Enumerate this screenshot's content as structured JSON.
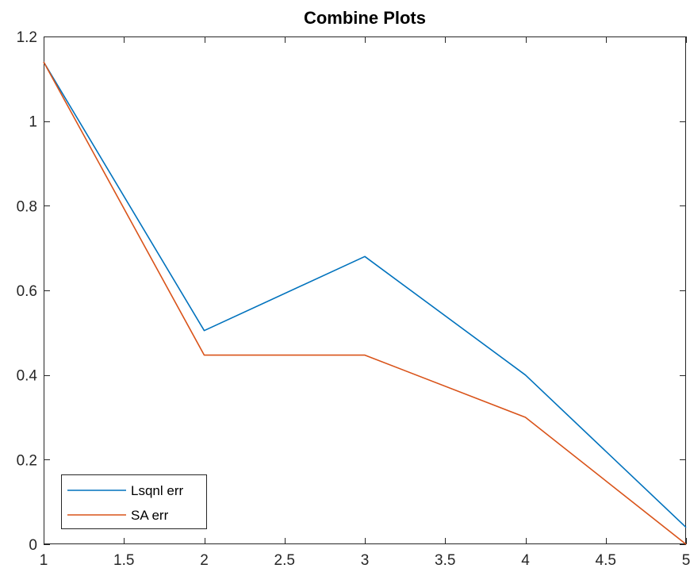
{
  "chart_data": {
    "type": "line",
    "title": "Combine Plots",
    "xlabel": "",
    "ylabel": "",
    "xlim": [
      1,
      5
    ],
    "ylim": [
      0,
      1.2
    ],
    "xticks": [
      "1",
      "1.5",
      "2",
      "2.5",
      "3",
      "3.5",
      "4",
      "4.5",
      "5"
    ],
    "yticks": [
      "0",
      "0.2",
      "0.4",
      "0.6",
      "0.8",
      "1",
      "1.2"
    ],
    "grid": false,
    "legend_location": "bottom-left",
    "series": [
      {
        "name": "Lsqnl err",
        "color": "#0072BD",
        "x": [
          1,
          2,
          3,
          4,
          5
        ],
        "y": [
          1.14,
          0.505,
          0.68,
          0.4,
          0.04
        ]
      },
      {
        "name": "SA err",
        "color": "#D95319",
        "x": [
          1,
          2,
          3,
          4,
          5
        ],
        "y": [
          1.14,
          0.447,
          0.447,
          0.3,
          0.0
        ]
      }
    ]
  }
}
